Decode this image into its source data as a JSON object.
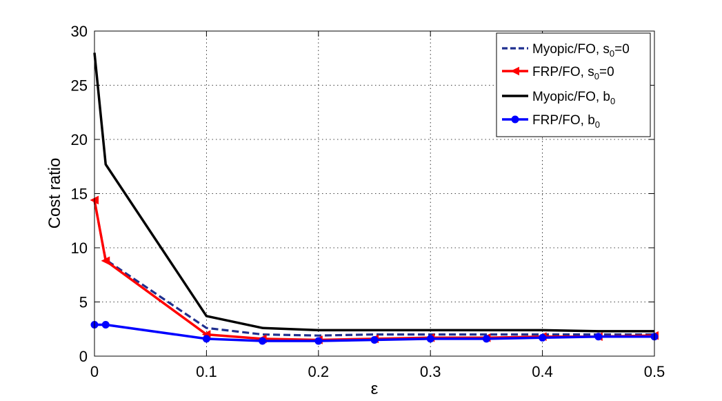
{
  "chart_data": {
    "type": "line",
    "xlabel": "ε",
    "ylabel": "Cost ratio",
    "xlim": [
      0,
      0.5
    ],
    "ylim": [
      0,
      30
    ],
    "x_ticks": [
      0,
      0.1,
      0.2,
      0.3,
      0.4,
      0.5
    ],
    "x_tick_labels": [
      "0",
      "0.1",
      "0.2",
      "0.3",
      "0.4",
      "0.5"
    ],
    "y_ticks": [
      0,
      5,
      10,
      15,
      20,
      25,
      30
    ],
    "y_tick_labels": [
      "0",
      "5",
      "10",
      "15",
      "20",
      "25",
      "30"
    ],
    "grid": true,
    "legend_position": "top-right",
    "series": [
      {
        "name": "Myopic/FO, s0=0",
        "label_main": "Myopic/FO, s",
        "label_sub": "0",
        "label_tail": "=0",
        "color": "#1f2f8f",
        "line_style": "dashed",
        "marker": "none",
        "x": [
          0,
          0.01,
          0.1,
          0.15,
          0.2,
          0.25,
          0.3,
          0.35,
          0.4,
          0.45,
          0.5
        ],
        "y": [
          14.3,
          8.9,
          2.6,
          2.0,
          1.9,
          2.0,
          2.0,
          2.0,
          2.0,
          2.0,
          2.0
        ]
      },
      {
        "name": "FRP/FO, s0=0",
        "label_main": "FRP/FO, s",
        "label_sub": "0",
        "label_tail": "=0",
        "color": "#ff0000",
        "line_style": "solid",
        "marker": "left-triangle",
        "x": [
          0,
          0.01,
          0.1,
          0.15,
          0.2,
          0.25,
          0.3,
          0.35,
          0.4,
          0.45,
          0.5
        ],
        "y": [
          14.4,
          8.8,
          2.0,
          1.6,
          1.5,
          1.6,
          1.7,
          1.7,
          1.8,
          1.8,
          1.9
        ]
      },
      {
        "name": "Myopic/FO, b0",
        "label_main": "Myopic/FO, b",
        "label_sub": "0",
        "label_tail": "",
        "color": "#000000",
        "line_style": "solid",
        "marker": "none",
        "x": [
          0,
          0.01,
          0.1,
          0.15,
          0.2,
          0.25,
          0.3,
          0.35,
          0.4,
          0.45,
          0.5
        ],
        "y": [
          28.0,
          17.7,
          3.7,
          2.6,
          2.4,
          2.4,
          2.4,
          2.4,
          2.4,
          2.3,
          2.3
        ]
      },
      {
        "name": "FRP/FO, b0",
        "label_main": "FRP/FO, b",
        "label_sub": "0",
        "label_tail": "",
        "color": "#0000ff",
        "line_style": "solid",
        "marker": "circle",
        "x": [
          0,
          0.01,
          0.1,
          0.15,
          0.2,
          0.25,
          0.3,
          0.35,
          0.4,
          0.45,
          0.5
        ],
        "y": [
          2.9,
          2.9,
          1.6,
          1.4,
          1.4,
          1.5,
          1.6,
          1.6,
          1.7,
          1.8,
          1.8
        ]
      }
    ]
  }
}
